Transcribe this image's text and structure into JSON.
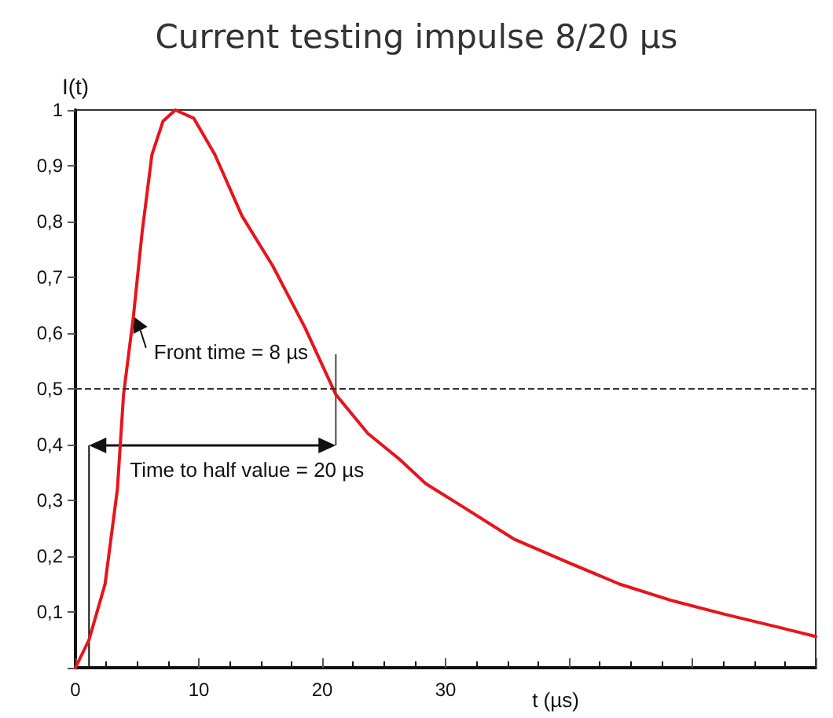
{
  "chart_data": {
    "type": "line",
    "title": "Current testing impulse 8/20 µs",
    "xlabel": "t (µs)",
    "ylabel": "I(t)",
    "series": [
      {
        "color": "#e8141c",
        "x": [
          0,
          1.1,
          2.4,
          3.4,
          3.9,
          4.7,
          5.4,
          6.2,
          7.1,
          8.1,
          9.6,
          11.3,
          13.5,
          16,
          18.6,
          21.1,
          23.7,
          26.2,
          28.4,
          31.3,
          35.6,
          39.8,
          44.1,
          48.4,
          52.6,
          56.9,
          60
        ],
        "values": [
          0,
          0.05,
          0.15,
          0.32,
          0.49,
          0.63,
          0.78,
          0.92,
          0.98,
          1,
          0.985,
          0.92,
          0.81,
          0.72,
          0.61,
          0.49,
          0.42,
          0.375,
          0.33,
          0.29,
          0.23,
          0.19,
          0.15,
          0.12,
          0.096,
          0.073,
          0.056
        ]
      }
    ],
    "xlim": [
      0,
      60
    ],
    "xticks": [
      0,
      10,
      20,
      30,
      {
        "value": 40,
        "label": null
      },
      {
        "value": 50,
        "label": null
      },
      {
        "value": 60,
        "label": null
      }
    ],
    "ylim": [
      0,
      1
    ],
    "yticks": [
      {
        "value": 0,
        "label": null
      },
      {
        "value": 0.1,
        "label": "0,1"
      },
      {
        "value": 0.2,
        "label": "0,2"
      },
      {
        "value": 0.3,
        "label": "0,3"
      },
      {
        "value": 0.4,
        "label": "0,4"
      },
      {
        "value": 0.5,
        "label": "0,5"
      },
      {
        "value": 0.6,
        "label": "0,6"
      },
      {
        "value": 0.7,
        "label": "0,7"
      },
      {
        "value": 0.8,
        "label": "0,8"
      },
      {
        "value": 0.9,
        "label": "0,9"
      },
      {
        "value": 1,
        "label": "1"
      }
    ],
    "ref_lines": [
      {
        "axis": "y",
        "value": 0.5,
        "color": "#333333",
        "line_style": "dashed"
      }
    ],
    "annotations": [
      {
        "text": "Front time = 8 µs",
        "x": 4.7,
        "y": 0.63
      },
      "Time to half value = 20 µs"
    ],
    "grid": false,
    "marker": "none",
    "line_style": "solid"
  }
}
